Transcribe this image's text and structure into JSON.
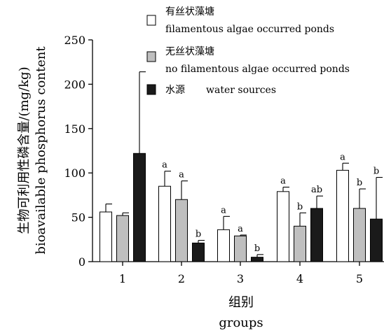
{
  "chart_data": {
    "type": "bar",
    "ylabel_cn": "生物可利用性磷含量/(mg/kg)",
    "ylabel_en": "bioavailable phosphorus content",
    "xlabel_cn": "组别",
    "xlabel_en": "groups",
    "ylim": [
      0,
      250
    ],
    "yticks": [
      "0",
      "50",
      "100",
      "150",
      "200",
      "250"
    ],
    "categories": [
      "1",
      "2",
      "3",
      "4",
      "5"
    ],
    "series": [
      {
        "name_cn": "有丝状藻塘",
        "name_en": "filamentous algae occurred ponds",
        "fill": "#ffffff",
        "values": [
          56,
          85,
          36,
          79,
          103
        ],
        "errors": [
          9,
          17,
          15,
          5,
          8
        ],
        "sig": [
          "",
          "a",
          "a",
          "a",
          "a"
        ]
      },
      {
        "name_cn": "无丝状藻塘",
        "name_en": "no filamentous algae occurred ponds",
        "fill": "#bfbfbf",
        "values": [
          52,
          70,
          29,
          40,
          60
        ],
        "errors": [
          3,
          21,
          1,
          15,
          22
        ],
        "sig": [
          "",
          "a",
          "a",
          "b",
          "b"
        ]
      },
      {
        "name_cn": "水源",
        "name_en": "water sources",
        "fill": "#1a1a1a",
        "values": [
          122,
          21,
          5,
          60,
          48
        ],
        "errors": [
          92,
          3,
          3,
          14,
          47
        ],
        "sig": [
          "",
          "b",
          "b",
          "ab",
          "b"
        ]
      }
    ]
  }
}
